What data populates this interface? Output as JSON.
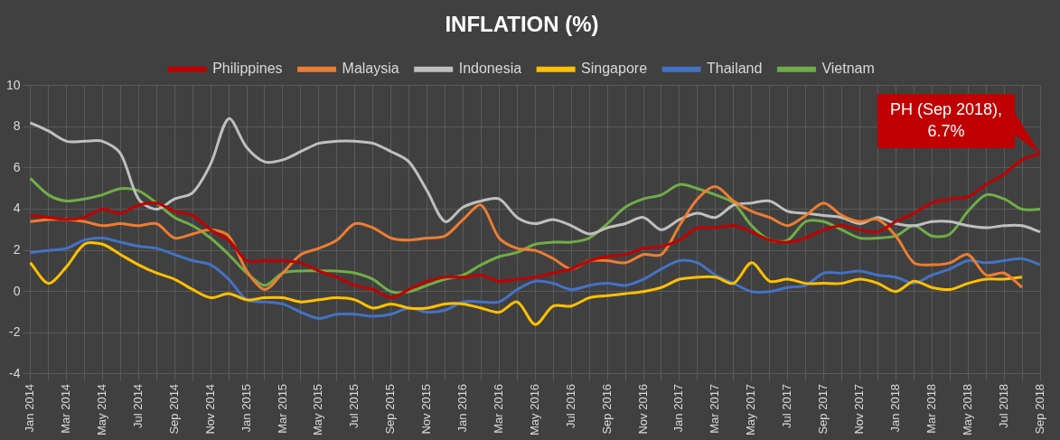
{
  "chart_data": {
    "type": "line",
    "title": "INFLATION (%)",
    "categories": [
      "Jan 2014",
      null,
      "Mar 2014",
      null,
      "May 2014",
      null,
      "Jul 2014",
      null,
      "Sep 2014",
      null,
      "Nov 2014",
      null,
      "Jan 2015",
      null,
      "Mar 2015",
      null,
      "May 2015",
      null,
      "Jul 2015",
      null,
      "Sep 2015",
      null,
      "Nov 2015",
      null,
      "Jan 2016",
      null,
      "Mar 2016",
      null,
      "May 2016",
      null,
      "Jul 2016",
      null,
      "Sep 2016",
      null,
      "Nov 2016",
      null,
      "Jan 2017",
      null,
      "Mar 2017",
      null,
      "May 2017",
      null,
      "Jul 2017",
      null,
      "Sep 2017",
      null,
      "Nov 2017",
      null,
      "Jan 2018",
      null,
      "Mar 2018",
      null,
      "May 2018",
      null,
      "Jul 2018",
      null,
      "Sep 2018"
    ],
    "series": [
      {
        "name": "Philippines",
        "color": "#c00000",
        "values": [
          3.7,
          3.6,
          3.5,
          3.6,
          4.0,
          3.8,
          4.2,
          4.3,
          3.9,
          3.7,
          3.0,
          2.5,
          1.5,
          1.5,
          1.5,
          1.4,
          1.0,
          0.7,
          0.3,
          0.1,
          -0.3,
          0.1,
          0.5,
          0.7,
          0.7,
          0.8,
          0.5,
          0.6,
          0.7,
          0.9,
          1.1,
          1.5,
          1.7,
          1.8,
          2.1,
          2.2,
          2.5,
          3.1,
          3.1,
          3.2,
          2.9,
          2.5,
          2.4,
          2.6,
          3.0,
          3.2,
          3.0,
          2.9,
          3.4,
          3.8,
          4.3,
          4.5,
          4.6,
          5.2,
          5.7,
          6.4,
          6.7
        ]
      },
      {
        "name": "Malaysia",
        "color": "#ed7d31",
        "values": [
          3.4,
          3.5,
          3.5,
          3.4,
          3.2,
          3.3,
          3.2,
          3.3,
          2.6,
          2.8,
          3.0,
          2.7,
          1.0,
          0.1,
          0.9,
          1.8,
          2.1,
          2.5,
          3.3,
          3.1,
          2.6,
          2.5,
          2.6,
          2.7,
          3.5,
          4.2,
          2.6,
          2.1,
          2.0,
          1.6,
          1.1,
          1.5,
          1.5,
          1.4,
          1.8,
          1.8,
          3.2,
          4.5,
          5.1,
          4.4,
          3.9,
          3.6,
          3.2,
          3.7,
          4.3,
          3.7,
          3.4,
          3.5,
          2.7,
          1.4,
          1.3,
          1.4,
          1.8,
          0.8,
          0.9,
          0.2,
          null
        ]
      },
      {
        "name": "Indonesia",
        "color": "#bfbfbf",
        "values": [
          8.2,
          7.8,
          7.3,
          7.3,
          7.3,
          6.7,
          4.5,
          4.0,
          4.5,
          4.8,
          6.2,
          8.4,
          7.0,
          6.3,
          6.4,
          6.8,
          7.2,
          7.3,
          7.3,
          7.2,
          6.8,
          6.3,
          4.9,
          3.4,
          4.1,
          4.4,
          4.5,
          3.6,
          3.3,
          3.5,
          3.2,
          2.8,
          3.1,
          3.3,
          3.6,
          3.0,
          3.5,
          3.8,
          3.6,
          4.2,
          4.3,
          4.4,
          3.9,
          3.8,
          3.7,
          3.6,
          3.3,
          3.6,
          3.3,
          3.2,
          3.4,
          3.4,
          3.2,
          3.1,
          3.2,
          3.2,
          2.9
        ]
      },
      {
        "name": "Singapore",
        "color": "#ffc000",
        "values": [
          1.4,
          0.4,
          1.2,
          2.3,
          2.3,
          1.8,
          1.3,
          0.9,
          0.6,
          0.1,
          -0.3,
          -0.1,
          -0.4,
          -0.3,
          -0.3,
          -0.5,
          -0.4,
          -0.3,
          -0.4,
          -0.8,
          -0.6,
          -0.8,
          -0.8,
          -0.6,
          -0.6,
          -0.8,
          -1.0,
          -0.5,
          -1.6,
          -0.7,
          -0.7,
          -0.3,
          -0.2,
          -0.1,
          0.0,
          0.2,
          0.6,
          0.7,
          0.7,
          0.4,
          1.4,
          0.5,
          0.6,
          0.4,
          0.4,
          0.4,
          0.6,
          0.4,
          0.0,
          0.5,
          0.2,
          0.1,
          0.4,
          0.6,
          0.6,
          0.7,
          null
        ]
      },
      {
        "name": "Thailand",
        "color": "#4472c4",
        "values": [
          1.9,
          2.0,
          2.1,
          2.5,
          2.6,
          2.4,
          2.2,
          2.1,
          1.8,
          1.5,
          1.3,
          0.6,
          -0.4,
          -0.5,
          -0.6,
          -1.0,
          -1.3,
          -1.1,
          -1.1,
          -1.2,
          -1.1,
          -0.8,
          -1.0,
          -0.9,
          -0.5,
          -0.5,
          -0.5,
          0.1,
          0.5,
          0.4,
          0.1,
          0.3,
          0.4,
          0.3,
          0.6,
          1.1,
          1.5,
          1.4,
          0.8,
          0.4,
          0.0,
          0.0,
          0.2,
          0.3,
          0.9,
          0.9,
          1.0,
          0.8,
          0.7,
          0.4,
          0.8,
          1.1,
          1.5,
          1.4,
          1.5,
          1.6,
          1.3
        ]
      },
      {
        "name": "Vietnam",
        "color": "#70ad47",
        "values": [
          5.5,
          4.7,
          4.4,
          4.5,
          4.7,
          5.0,
          4.9,
          4.3,
          3.6,
          3.2,
          2.6,
          1.8,
          0.9,
          0.3,
          0.9,
          1.0,
          1.0,
          1.0,
          0.9,
          0.6,
          0.0,
          0.0,
          0.3,
          0.6,
          0.8,
          1.3,
          1.7,
          1.9,
          2.3,
          2.4,
          2.4,
          2.6,
          3.3,
          4.1,
          4.5,
          4.7,
          5.2,
          5.0,
          4.7,
          4.3,
          3.2,
          2.5,
          2.5,
          3.4,
          3.4,
          3.0,
          2.6,
          2.6,
          2.7,
          3.2,
          2.7,
          2.8,
          3.9,
          4.7,
          4.5,
          4.0,
          4.0
        ]
      }
    ],
    "ylim": [
      -4,
      10
    ],
    "yticks": [
      -4,
      -2,
      0,
      2,
      4,
      6,
      8,
      10
    ],
    "grid": true,
    "legend": "top",
    "annotations": [
      {
        "text": "PH (Sep 2018), 6.7%",
        "category": "Sep 2018",
        "value": 6.7
      }
    ]
  }
}
